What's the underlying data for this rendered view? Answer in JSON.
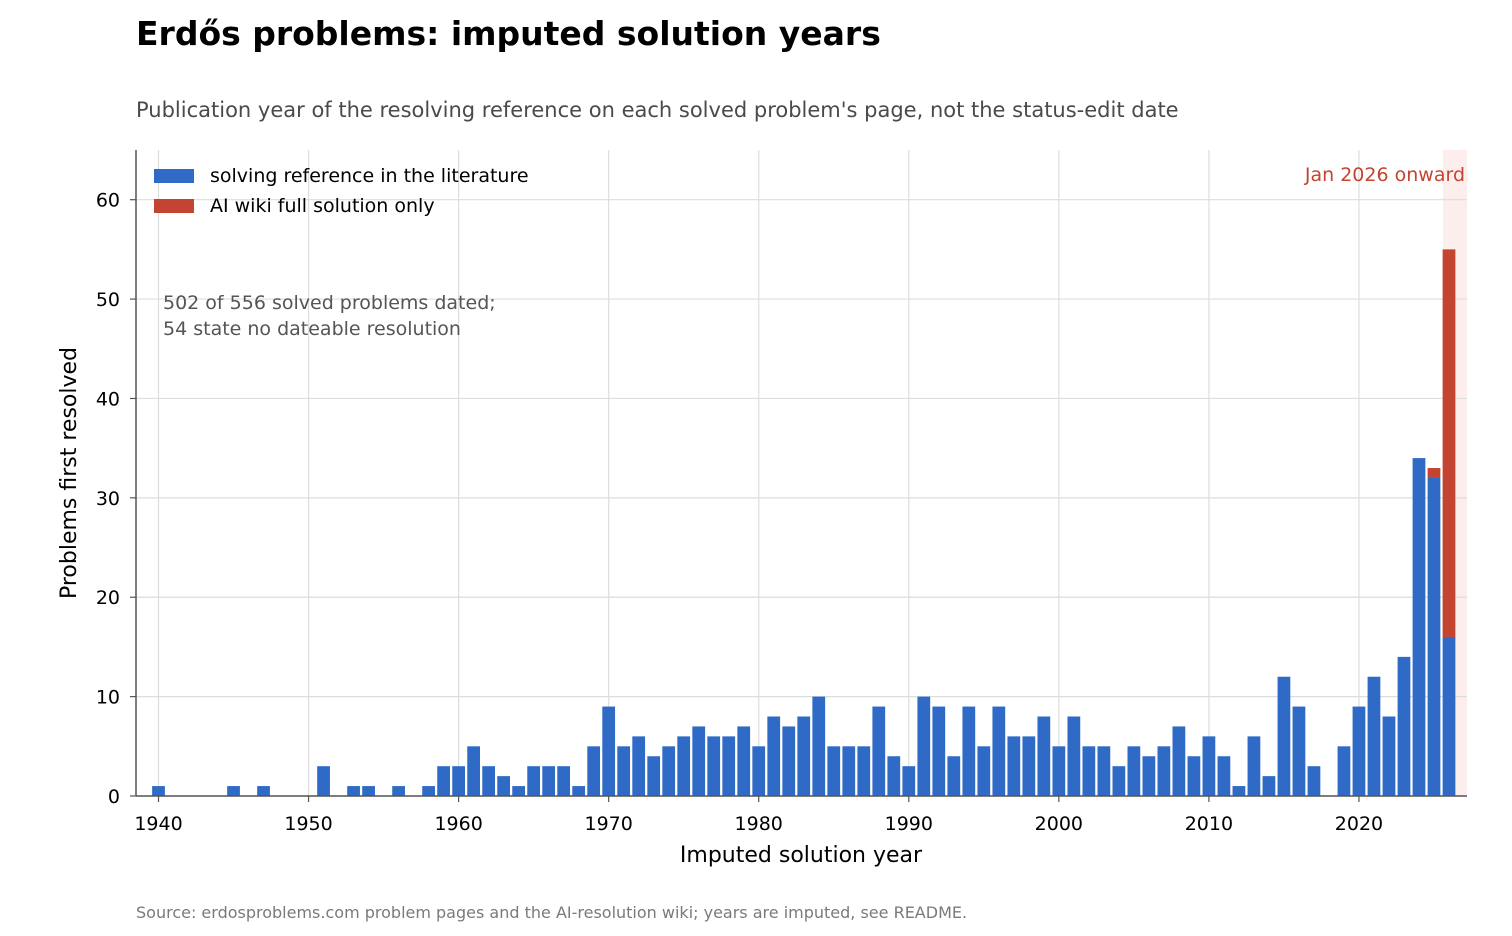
{
  "title": "Erdős problems: imputed solution years",
  "subtitle": "Publication year of the resolving reference on each solved problem's page, not the status-edit date",
  "source": "Source: erdosproblems.com problem pages and the AI-resolution wiki; years are imputed, see README.",
  "annotation": {
    "line1": "502 of 556 solved problems dated;",
    "line2": "54 state no dateable resolution"
  },
  "highlight_label": "Jan 2026 onward",
  "colors": {
    "literature": "#2f6bc6",
    "ai_wiki": "#c34431",
    "highlight_band": "#fbeeed",
    "highlight_text": "#c34431",
    "grid": "#dddddd"
  },
  "chart_data": {
    "type": "bar",
    "stacked": true,
    "xlabel": "Imputed solution year",
    "ylabel": "Problems first resolved",
    "xlim": [
      1938.5,
      2027.2
    ],
    "ylim": [
      0,
      65
    ],
    "x_ticks": [
      1940,
      1950,
      1960,
      1970,
      1980,
      1990,
      2000,
      2010,
      2020
    ],
    "y_ticks": [
      0,
      10,
      20,
      30,
      40,
      50,
      60
    ],
    "grid": true,
    "legend_position": "top-left",
    "highlight_region": {
      "from": 2025.6,
      "to": 2027.2,
      "label": "Jan 2026 onward"
    },
    "x": [
      1940,
      1941,
      1942,
      1943,
      1944,
      1945,
      1946,
      1947,
      1948,
      1949,
      1950,
      1951,
      1952,
      1953,
      1954,
      1955,
      1956,
      1957,
      1958,
      1959,
      1960,
      1961,
      1962,
      1963,
      1964,
      1965,
      1966,
      1967,
      1968,
      1969,
      1970,
      1971,
      1972,
      1973,
      1974,
      1975,
      1976,
      1977,
      1978,
      1979,
      1980,
      1981,
      1982,
      1983,
      1984,
      1985,
      1986,
      1987,
      1988,
      1989,
      1990,
      1991,
      1992,
      1993,
      1994,
      1995,
      1996,
      1997,
      1998,
      1999,
      2000,
      2001,
      2002,
      2003,
      2004,
      2005,
      2006,
      2007,
      2008,
      2009,
      2010,
      2011,
      2012,
      2013,
      2014,
      2015,
      2016,
      2017,
      2018,
      2019,
      2020,
      2021,
      2022,
      2023,
      2024,
      2025,
      2026
    ],
    "series": [
      {
        "name": "solving reference in the literature",
        "color": "#2f6bc6",
        "values": [
          1,
          0,
          0,
          0,
          0,
          1,
          0,
          1,
          0,
          0,
          0,
          3,
          0,
          1,
          1,
          0,
          1,
          0,
          1,
          3,
          3,
          5,
          3,
          2,
          1,
          3,
          3,
          3,
          1,
          5,
          9,
          5,
          6,
          4,
          5,
          6,
          7,
          6,
          6,
          7,
          5,
          8,
          7,
          8,
          10,
          5,
          5,
          5,
          9,
          4,
          3,
          10,
          9,
          4,
          9,
          5,
          9,
          6,
          6,
          8,
          5,
          8,
          5,
          5,
          3,
          5,
          4,
          5,
          7,
          4,
          6,
          4,
          1,
          6,
          2,
          12,
          9,
          3,
          0,
          5,
          9,
          12,
          8,
          14,
          34,
          32,
          16
        ]
      },
      {
        "name": "AI wiki full solution only",
        "color": "#c34431",
        "values": [
          0,
          0,
          0,
          0,
          0,
          0,
          0,
          0,
          0,
          0,
          0,
          0,
          0,
          0,
          0,
          0,
          0,
          0,
          0,
          0,
          0,
          0,
          0,
          0,
          0,
          0,
          0,
          0,
          0,
          0,
          0,
          0,
          0,
          0,
          0,
          0,
          0,
          0,
          0,
          0,
          0,
          0,
          0,
          0,
          0,
          0,
          0,
          0,
          0,
          0,
          0,
          0,
          0,
          0,
          0,
          0,
          0,
          0,
          0,
          0,
          0,
          0,
          0,
          0,
          0,
          0,
          0,
          0,
          0,
          0,
          0,
          0,
          0,
          0,
          0,
          0,
          0,
          0,
          0,
          0,
          0,
          0,
          0,
          0,
          0,
          1,
          39
        ]
      }
    ]
  }
}
